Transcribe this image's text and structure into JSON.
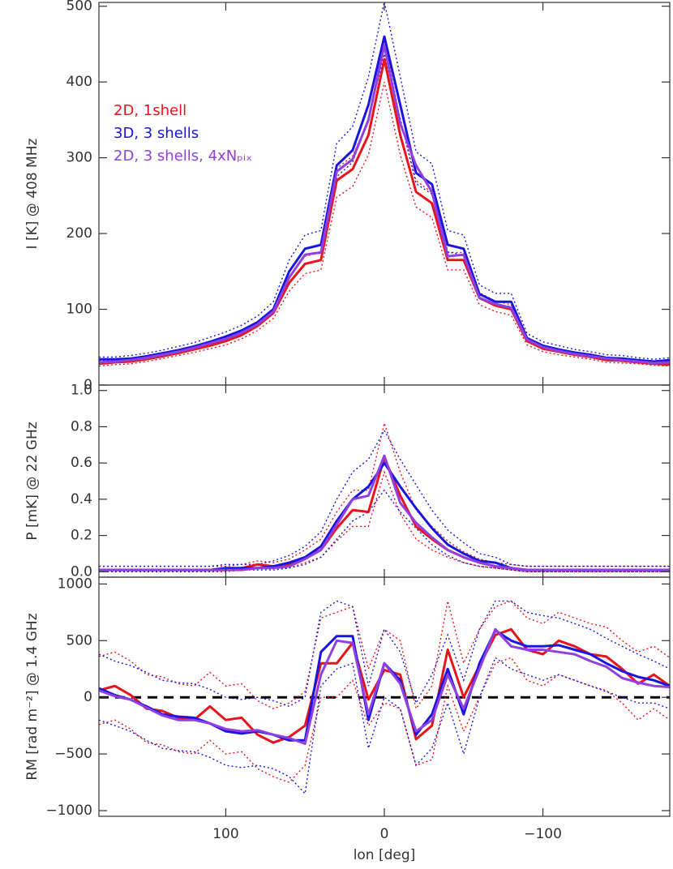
{
  "chart_data": [
    {
      "type": "line",
      "ylabel": "I [K] @ 408 MHz",
      "ylim": [
        0,
        505
      ],
      "yticks": [
        0,
        100,
        200,
        300,
        400,
        500
      ],
      "legend": "upper left",
      "x": [
        180,
        170,
        160,
        150,
        140,
        130,
        120,
        110,
        100,
        90,
        80,
        70,
        60,
        50,
        40,
        30,
        20,
        10,
        0,
        -10,
        -20,
        -30,
        -40,
        -50,
        -60,
        -70,
        -80,
        -90,
        -100,
        -110,
        -120,
        -130,
        -140,
        -150,
        -160,
        -170,
        -180
      ],
      "series": [
        {
          "name": "2D, 1shell",
          "color": "#e8141b",
          "values": [
            28,
            30,
            31,
            34,
            38,
            42,
            47,
            52,
            58,
            66,
            78,
            95,
            135,
            160,
            165,
            270,
            285,
            330,
            430,
            330,
            255,
            240,
            165,
            165,
            115,
            105,
            100,
            58,
            48,
            44,
            40,
            37,
            33,
            32,
            30,
            28,
            27
          ],
          "lower": [
            25,
            27,
            28,
            31,
            35,
            39,
            43,
            48,
            53,
            61,
            72,
            88,
            124,
            147,
            152,
            248,
            262,
            304,
            400,
            304,
            235,
            221,
            152,
            152,
            106,
            97,
            92,
            53,
            44,
            40,
            37,
            34,
            30,
            29,
            28,
            26,
            25
          ],
          "upper": [
            30,
            32,
            33,
            36,
            40,
            45,
            50,
            55,
            62,
            70,
            83,
            101,
            143,
            170,
            175,
            286,
            302,
            350,
            456,
            350,
            270,
            254,
            175,
            175,
            122,
            111,
            106,
            61,
            51,
            47,
            42,
            39,
            35,
            34,
            32,
            30,
            29
          ]
        },
        {
          "name": "3D, 3 shells",
          "color": "#1a14e0",
          "values": [
            34,
            34,
            35,
            38,
            42,
            46,
            51,
            57,
            64,
            72,
            83,
            100,
            150,
            180,
            185,
            290,
            310,
            370,
            460,
            370,
            280,
            265,
            185,
            180,
            120,
            110,
            110,
            62,
            52,
            47,
            43,
            40,
            36,
            35,
            33,
            31,
            33
          ],
          "lower": [
            32,
            32,
            33,
            36,
            40,
            44,
            48,
            54,
            61,
            68,
            79,
            95,
            142,
            171,
            176,
            275,
            294,
            352,
            437,
            352,
            266,
            252,
            176,
            171,
            114,
            104,
            104,
            59,
            49,
            45,
            41,
            38,
            34,
            33,
            31,
            29,
            31
          ],
          "upper": [
            37,
            37,
            39,
            42,
            46,
            51,
            56,
            63,
            70,
            79,
            91,
            110,
            165,
            198,
            204,
            319,
            341,
            407,
            506,
            407,
            308,
            292,
            204,
            198,
            132,
            121,
            121,
            68,
            57,
            52,
            47,
            44,
            40,
            39,
            36,
            34,
            36
          ]
        },
        {
          "name": "2D, 3 shells, 4xNₚᵢₓ",
          "color": "#9040e0",
          "values": [
            30,
            31,
            33,
            36,
            40,
            44,
            49,
            55,
            61,
            69,
            80,
            97,
            142,
            172,
            175,
            282,
            298,
            350,
            448,
            345,
            290,
            255,
            170,
            172,
            115,
            107,
            102,
            60,
            50,
            45,
            41,
            38,
            35,
            33,
            31,
            29,
            30
          ]
        }
      ]
    },
    {
      "type": "line",
      "ylabel": "P [mK] @ 22 GHz",
      "ylim": [
        -0.03,
        1.03
      ],
      "yticks": [
        {
          "value": 0,
          "label": "0.0"
        },
        0.2,
        0.4,
        0.6,
        0.8,
        {
          "value": 1,
          "label": "1.0"
        }
      ],
      "x": [
        180,
        170,
        160,
        150,
        140,
        130,
        120,
        110,
        100,
        90,
        80,
        70,
        60,
        50,
        40,
        30,
        20,
        10,
        0,
        -10,
        -20,
        -30,
        -40,
        -50,
        -60,
        -70,
        -80,
        -90,
        -100,
        -110,
        -120,
        -130,
        -140,
        -150,
        -160,
        -170,
        -180
      ],
      "series": [
        {
          "color": "#e8141b",
          "values": [
            0.01,
            0.01,
            0.01,
            0.01,
            0.01,
            0.01,
            0.01,
            0.01,
            0.01,
            0.02,
            0.04,
            0.03,
            0.04,
            0.08,
            0.12,
            0.24,
            0.34,
            0.33,
            0.63,
            0.42,
            0.25,
            0.18,
            0.12,
            0.08,
            0.05,
            0.03,
            0.02,
            0.01,
            0.01,
            0.01,
            0.01,
            0.01,
            0.01,
            0.01,
            0.01,
            0.01,
            0.01
          ],
          "lower": [
            0,
            0,
            0,
            0,
            0,
            0,
            0,
            0,
            0,
            0.01,
            0.02,
            0.02,
            0.02,
            0.05,
            0.08,
            0.17,
            0.25,
            0.25,
            0.55,
            0.32,
            0.18,
            0.12,
            0.08,
            0.05,
            0.03,
            0.02,
            0.01,
            0,
            0,
            0,
            0,
            0,
            0,
            0,
            0,
            0,
            0
          ],
          "upper": [
            0.03,
            0.03,
            0.03,
            0.03,
            0.03,
            0.03,
            0.03,
            0.03,
            0.03,
            0.04,
            0.06,
            0.05,
            0.07,
            0.12,
            0.18,
            0.33,
            0.45,
            0.45,
            0.82,
            0.55,
            0.34,
            0.25,
            0.17,
            0.11,
            0.07,
            0.05,
            0.04,
            0.03,
            0.03,
            0.03,
            0.03,
            0.03,
            0.03,
            0.03,
            0.03,
            0.03,
            0.03
          ]
        },
        {
          "color": "#1a14e0",
          "values": [
            0.01,
            0.01,
            0.01,
            0.01,
            0.01,
            0.01,
            0.01,
            0.01,
            0.02,
            0.02,
            0.02,
            0.03,
            0.05,
            0.08,
            0.14,
            0.28,
            0.4,
            0.47,
            0.6,
            0.47,
            0.35,
            0.24,
            0.15,
            0.1,
            0.06,
            0.05,
            0.02,
            0.01,
            0.01,
            0.01,
            0.01,
            0.01,
            0.01,
            0.01,
            0.01,
            0.01,
            0.01
          ],
          "lower": [
            0,
            0,
            0,
            0,
            0,
            0,
            0,
            0,
            0.01,
            0.01,
            0.01,
            0.01,
            0.02,
            0.04,
            0.08,
            0.18,
            0.28,
            0.33,
            0.45,
            0.33,
            0.24,
            0.15,
            0.09,
            0.05,
            0.03,
            0.02,
            0.01,
            0,
            0,
            0,
            0,
            0,
            0,
            0,
            0,
            0,
            0
          ],
          "upper": [
            0.03,
            0.03,
            0.03,
            0.03,
            0.03,
            0.03,
            0.03,
            0.03,
            0.04,
            0.04,
            0.04,
            0.06,
            0.09,
            0.14,
            0.22,
            0.4,
            0.55,
            0.62,
            0.78,
            0.62,
            0.48,
            0.34,
            0.23,
            0.16,
            0.1,
            0.08,
            0.04,
            0.03,
            0.03,
            0.03,
            0.03,
            0.03,
            0.03,
            0.03,
            0.03,
            0.03,
            0.03
          ]
        },
        {
          "color": "#9040e0",
          "values": [
            0.01,
            0.01,
            0.01,
            0.01,
            0.01,
            0.01,
            0.01,
            0.01,
            0.01,
            0.01,
            0.02,
            0.02,
            0.03,
            0.07,
            0.12,
            0.26,
            0.4,
            0.42,
            0.64,
            0.38,
            0.27,
            0.19,
            0.12,
            0.08,
            0.05,
            0.03,
            0.02,
            0.01,
            0.01,
            0.01,
            0.01,
            0.01,
            0.01,
            0.01,
            0.01,
            0.01,
            0.01
          ]
        }
      ]
    },
    {
      "type": "line",
      "ylabel": "RM [rad m⁻²] @ 1.4 GHz",
      "ylim": [
        -1050,
        1060
      ],
      "yticks": [
        {
          "value": -1000,
          "label": "−1000"
        },
        {
          "value": -500,
          "label": "−500"
        },
        0,
        500,
        1000
      ],
      "reference_line": 0,
      "xlabel": "lon [deg]",
      "xlim": [
        180,
        -180
      ],
      "xticks": [
        100,
        0,
        {
          "value": -100,
          "label": "−100"
        }
      ],
      "x": [
        180,
        170,
        160,
        150,
        140,
        130,
        120,
        110,
        100,
        90,
        80,
        70,
        60,
        50,
        40,
        30,
        20,
        10,
        0,
        -10,
        -20,
        -30,
        -40,
        -50,
        -60,
        -70,
        -80,
        -90,
        -100,
        -110,
        -120,
        -130,
        -140,
        -150,
        -160,
        -170,
        -180
      ],
      "series": [
        {
          "color": "#e8141b",
          "values": [
            60,
            100,
            20,
            -100,
            -120,
            -180,
            -200,
            -80,
            -200,
            -180,
            -330,
            -400,
            -350,
            -250,
            300,
            300,
            480,
            -20,
            240,
            200,
            -370,
            -250,
            420,
            0,
            280,
            550,
            600,
            420,
            380,
            500,
            450,
            380,
            360,
            250,
            120,
            200,
            100
          ],
          "lower": [
            -240,
            -200,
            -280,
            -400,
            -420,
            -480,
            -500,
            -380,
            -500,
            -480,
            -630,
            -700,
            -750,
            -600,
            0,
            0,
            150,
            -250,
            -50,
            -100,
            -600,
            -550,
            100,
            -300,
            0,
            300,
            350,
            150,
            100,
            200,
            150,
            100,
            60,
            -50,
            -200,
            -100,
            -200
          ],
          "upper": [
            360,
            400,
            320,
            200,
            180,
            120,
            100,
            220,
            100,
            120,
            -30,
            -100,
            -50,
            50,
            700,
            750,
            800,
            250,
            600,
            500,
            -100,
            100,
            850,
            300,
            600,
            800,
            850,
            700,
            650,
            750,
            700,
            650,
            620,
            500,
            400,
            450,
            350
          ]
        },
        {
          "color": "#1a14e0",
          "values": [
            80,
            20,
            -20,
            -80,
            -150,
            -170,
            -180,
            -230,
            -300,
            -320,
            -300,
            -330,
            -380,
            -380,
            400,
            540,
            540,
            -200,
            300,
            150,
            -330,
            -150,
            250,
            -150,
            300,
            590,
            500,
            450,
            450,
            460,
            420,
            380,
            300,
            230,
            180,
            150,
            100
          ],
          "lower": [
            -200,
            -250,
            -300,
            -380,
            -450,
            -470,
            -480,
            -530,
            -600,
            -620,
            -600,
            -630,
            -700,
            -850,
            100,
            250,
            300,
            -450,
            0,
            -100,
            -600,
            -450,
            -50,
            -500,
            0,
            350,
            250,
            200,
            150,
            200,
            150,
            100,
            50,
            0,
            -50,
            -50,
            -100
          ],
          "upper": [
            380,
            320,
            280,
            220,
            150,
            130,
            120,
            70,
            0,
            -20,
            0,
            -30,
            -80,
            0,
            750,
            850,
            800,
            100,
            600,
            400,
            -50,
            200,
            550,
            150,
            600,
            850,
            850,
            750,
            720,
            700,
            650,
            600,
            520,
            450,
            380,
            320,
            250
          ]
        },
        {
          "color": "#9040e0",
          "values": [
            60,
            10,
            -20,
            -90,
            -160,
            -200,
            -200,
            -230,
            -280,
            -300,
            -290,
            -330,
            -360,
            -410,
            200,
            500,
            480,
            -150,
            300,
            120,
            -300,
            -200,
            200,
            -100,
            250,
            600,
            450,
            420,
            420,
            400,
            380,
            320,
            270,
            170,
            130,
            100,
            90
          ]
        }
      ]
    }
  ]
}
